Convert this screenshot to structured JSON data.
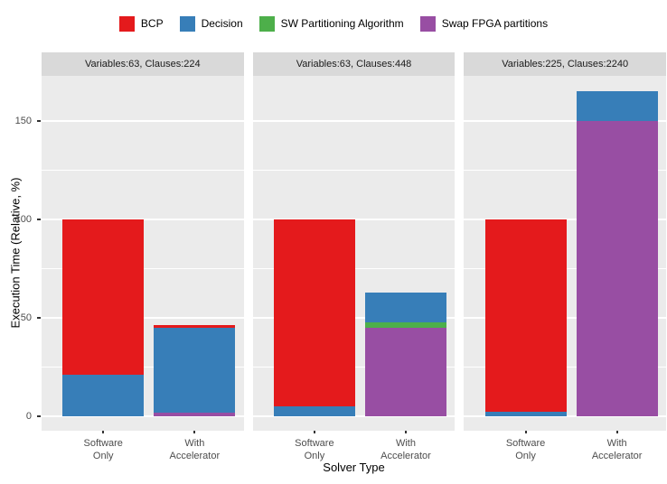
{
  "figure": {
    "background": "#FFFFFF",
    "panel_background": "#EBEBEB",
    "strip_background": "#D9D9D9",
    "gridline_color": "#FFFFFF",
    "axis_text_color": "#4D4D4D",
    "tick_mark_color": "#333333"
  },
  "legend": {
    "items": [
      {
        "label": "BCP",
        "color": "#E41A1C"
      },
      {
        "label": "Decision",
        "color": "#377EB8"
      },
      {
        "label": "SW Partitioning Algorithm",
        "color": "#4DAF4A"
      },
      {
        "label": "Swap FPGA partitions",
        "color": "#984EA3"
      }
    ]
  },
  "axes": {
    "x_title": "Solver Type",
    "y_title": "Execution Time (Relative, %)",
    "y_tick_labels": [
      "0",
      "50",
      "100",
      "150"
    ]
  },
  "chart_data": {
    "type": "bar",
    "stacked": true,
    "orientation": "vertical",
    "title": "",
    "xlabel": "Solver Type",
    "ylabel": "Execution Time (Relative, %)",
    "ylim": [
      -7,
      173
    ],
    "yticks": [
      0,
      50,
      100,
      150
    ],
    "yticks_minor": [
      25,
      75,
      125
    ],
    "grid": true,
    "legend_position": "top",
    "categories": [
      "Software Only",
      "With Accelerator"
    ],
    "series_order_bottom_to_top": [
      "Swap FPGA partitions",
      "SW Partitioning Algorithm",
      "Decision",
      "BCP"
    ],
    "facets": [
      {
        "label": "Variables:63, Clauses:224",
        "bars": [
          {
            "category": "Software Only",
            "total": 100,
            "segments": [
              {
                "name": "Decision",
                "value": 21
              },
              {
                "name": "BCP",
                "value": 79
              }
            ]
          },
          {
            "category": "With Accelerator",
            "total": 46.5,
            "segments": [
              {
                "name": "Swap FPGA partitions",
                "value": 2
              },
              {
                "name": "Decision",
                "value": 43
              },
              {
                "name": "BCP",
                "value": 1.5
              }
            ]
          }
        ]
      },
      {
        "label": "Variables:63, Clauses:448",
        "bars": [
          {
            "category": "Software Only",
            "total": 100,
            "segments": [
              {
                "name": "Decision",
                "value": 5
              },
              {
                "name": "BCP",
                "value": 95
              }
            ]
          },
          {
            "category": "With Accelerator",
            "total": 63,
            "segments": [
              {
                "name": "Swap FPGA partitions",
                "value": 45
              },
              {
                "name": "SW Partitioning Algorithm",
                "value": 2.5
              },
              {
                "name": "Decision",
                "value": 15.5
              }
            ]
          }
        ]
      },
      {
        "label": "Variables:225, Clauses:2240",
        "bars": [
          {
            "category": "Software Only",
            "total": 100,
            "segments": [
              {
                "name": "Decision",
                "value": 2.5
              },
              {
                "name": "BCP",
                "value": 97.5
              }
            ]
          },
          {
            "category": "With Accelerator",
            "total": 165,
            "segments": [
              {
                "name": "Swap FPGA partitions",
                "value": 150
              },
              {
                "name": "Decision",
                "value": 15
              }
            ]
          }
        ]
      }
    ]
  }
}
